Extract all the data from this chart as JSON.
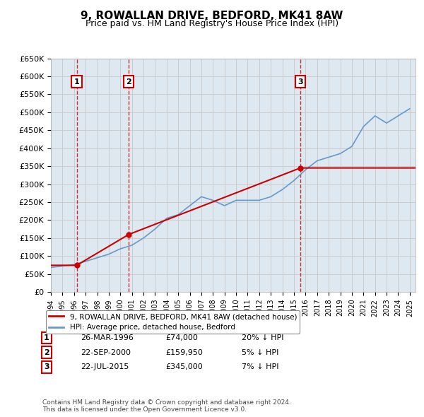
{
  "title": "9, ROWALLAN DRIVE, BEDFORD, MK41 8AW",
  "subtitle": "Price paid vs. HM Land Registry's House Price Index (HPI)",
  "ylabel_ticks": [
    "£0",
    "£50K",
    "£100K",
    "£150K",
    "£200K",
    "£250K",
    "£300K",
    "£350K",
    "£400K",
    "£450K",
    "£500K",
    "£550K",
    "£600K",
    "£650K"
  ],
  "ytick_values": [
    0,
    50000,
    100000,
    150000,
    200000,
    250000,
    300000,
    350000,
    400000,
    450000,
    500000,
    550000,
    600000,
    650000
  ],
  "ylim": [
    0,
    650000
  ],
  "xlim_start": 1994.0,
  "xlim_end": 2025.5,
  "sale_dates": [
    1996.23,
    2000.73,
    2015.55
  ],
  "sale_prices": [
    74000,
    159950,
    345000
  ],
  "sale_labels": [
    "1",
    "2",
    "3"
  ],
  "sale_date_strs": [
    "26-MAR-1996",
    "22-SEP-2000",
    "22-JUL-2015"
  ],
  "sale_price_strs": [
    "£74,000",
    "£159,950",
    "£345,000"
  ],
  "sale_hpi_strs": [
    "20% ↓ HPI",
    "5% ↓ HPI",
    "7% ↓ HPI"
  ],
  "hpi_years": [
    1994,
    1995,
    1996,
    1997,
    1998,
    1999,
    2000,
    2001,
    2002,
    2003,
    2004,
    2005,
    2006,
    2007,
    2008,
    2009,
    2010,
    2011,
    2012,
    2013,
    2014,
    2015,
    2016,
    2017,
    2018,
    2019,
    2020,
    2021,
    2022,
    2023,
    2024,
    2025
  ],
  "hpi_values": [
    68000,
    72000,
    76000,
    85000,
    95000,
    105000,
    120000,
    130000,
    150000,
    175000,
    205000,
    215000,
    240000,
    265000,
    255000,
    240000,
    255000,
    255000,
    255000,
    265000,
    285000,
    310000,
    340000,
    365000,
    375000,
    385000,
    405000,
    460000,
    490000,
    470000,
    490000,
    510000
  ],
  "price_paid_years": [
    1994,
    1996.23,
    1996.23,
    2000.73,
    2000.73,
    2015.55,
    2015.55,
    2025.5
  ],
  "price_paid_values": [
    74000,
    74000,
    74000,
    159950,
    159950,
    345000,
    345000,
    345000
  ],
  "red_color": "#cc0000",
  "blue_color": "#6699cc",
  "hatch_color": "#dddddd",
  "grid_color": "#cccccc",
  "background_plot": "#dde8f0",
  "legend_label_red": "9, ROWALLAN DRIVE, BEDFORD, MK41 8AW (detached house)",
  "legend_label_blue": "HPI: Average price, detached house, Bedford",
  "footnote": "Contains HM Land Registry data © Crown copyright and database right 2024.\nThis data is licensed under the Open Government Licence v3.0.",
  "xtick_years": [
    1994,
    1995,
    1996,
    1997,
    1998,
    1999,
    2000,
    2001,
    2002,
    2003,
    2004,
    2005,
    2006,
    2007,
    2008,
    2009,
    2010,
    2011,
    2012,
    2013,
    2014,
    2015,
    2016,
    2017,
    2018,
    2019,
    2020,
    2021,
    2022,
    2023,
    2024,
    2025
  ]
}
